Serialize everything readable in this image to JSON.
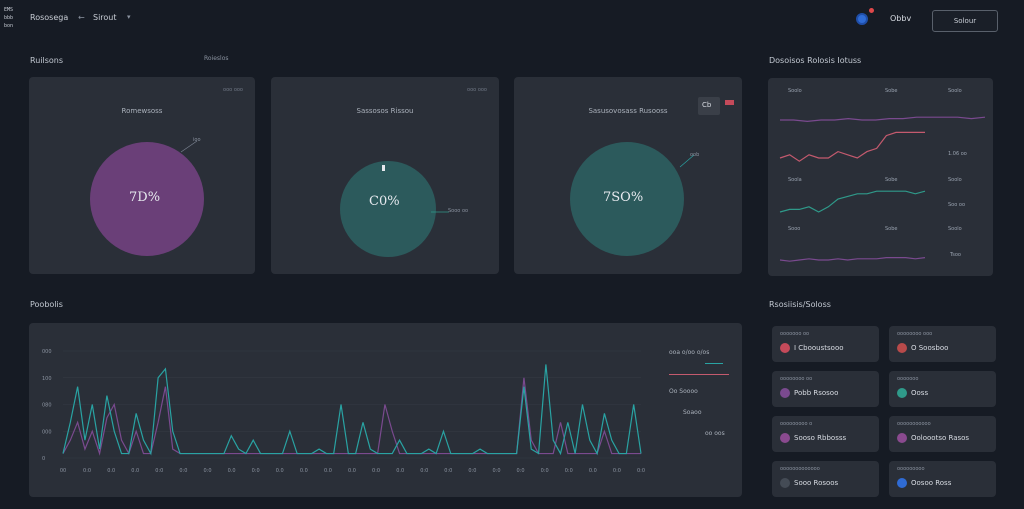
{
  "app": {
    "logo_lines": [
      "EMS",
      "bbb",
      "bon"
    ],
    "breadcrumb": [
      "Rososega",
      "Sirout"
    ],
    "user_label": "Obbv",
    "top_button": "Solour"
  },
  "colors": {
    "bg": "#161b24",
    "card": "#2a2f38",
    "purple": "#6a3f78",
    "teal": "#2c5a5c",
    "pink": "#c45a6e",
    "green": "#2f9a8a",
    "violet": "#7a4a8f",
    "cyan": "#29a3a3"
  },
  "overview": {
    "title": "Ruilsons",
    "tail": "Roieslos",
    "cards": [
      {
        "title": "Romewsoss",
        "corner": "ooo ooo",
        "value": "7D%",
        "leader": "ioo"
      },
      {
        "title": "Sassosos Rissou",
        "corner": "ooo ooo",
        "value": "C0%",
        "leader": "Sooo oo"
      },
      {
        "title": "Sasusovosass Rusooss",
        "corner": "Cb",
        "value": "7SO%",
        "leader": "oob"
      }
    ]
  },
  "trends": {
    "title": "Dosoisos Rolosis Iotuss",
    "columns": [
      "Soolo",
      "Sobe",
      "Soolo"
    ],
    "rows": [
      {
        "color_key": "violet",
        "label": "",
        "value": ""
      },
      {
        "color_key": "pink",
        "label": "Sooo",
        "value": "1.06 oo"
      },
      {
        "color_key": "green",
        "label": "Soola",
        "value": "Soo oo"
      },
      {
        "color_key": "violet",
        "label": "Sooo",
        "value": "Tsoo"
      }
    ],
    "col_row_labels": [
      "Soolo",
      "Sobe",
      "Soolo"
    ]
  },
  "bottom": {
    "title": "Poobolis",
    "y_ticks": [
      "000",
      "100",
      "080",
      "000",
      "0"
    ],
    "x_ticks": [
      "00",
      "0:0",
      "0.0",
      "0.0",
      "0:0",
      "0:0",
      "0:0",
      "0.0",
      "0:0",
      "0.0",
      "0.0",
      "0.0",
      "0.0",
      "0:0",
      "0.0",
      "0:0",
      "0:0",
      "0:0",
      "0:0",
      "0:0",
      "0:0",
      "0:0",
      "0.0",
      "0:0",
      "0:0"
    ],
    "legend": [
      {
        "color_key": "",
        "text": "ooa  o/oo  o/os"
      },
      {
        "color_key": "cyan",
        "text": ""
      },
      {
        "color_key": "pink",
        "text": ""
      },
      {
        "color_key": "",
        "text": "Oo  Soooo"
      },
      {
        "color_key": "",
        "text": "Soaoo"
      },
      {
        "color_key": "",
        "text": "oo  oos"
      }
    ]
  },
  "status": {
    "title": "Rsosiisis/Soloss",
    "tiles": [
      {
        "title": "ooooooo  oo",
        "value": "I Cbooustsooo",
        "icon_color": "#c44a5a"
      },
      {
        "title": "oooooooo  ooo",
        "value": "O Soosboo",
        "icon_color": "#b84a4a"
      },
      {
        "title": "oooooooo  oo",
        "value": "Pobb Rsosoo",
        "icon_color": "#7a4a8f"
      },
      {
        "title": "ooooooo",
        "value": "Ooss",
        "icon_color": "#2f9a8a"
      },
      {
        "title": "ooooooooo  o",
        "value": "Sooso Rbbosss",
        "icon_color": "#8a4a8f"
      },
      {
        "title": "ooooooooooo",
        "value": "Ooloootso Rasos",
        "icon_color": "#8a4a8f"
      },
      {
        "title": "ooooooooooooo",
        "value": "Sooo Rosoos",
        "icon_color": "#444b55"
      },
      {
        "title": "ooooooooo",
        "value": "Oosoo Ross",
        "icon_color": "#2f6bd4"
      }
    ]
  },
  "chart_data": {
    "type": "line",
    "title": "",
    "xlabel": "",
    "ylabel": "",
    "x": [
      0,
      1,
      2,
      3,
      4,
      5,
      6,
      7,
      8,
      9,
      10,
      11,
      12,
      13,
      14,
      15,
      16,
      17,
      18,
      19,
      20,
      21,
      22,
      23,
      24,
      25,
      26,
      27,
      28,
      29,
      30,
      31,
      32,
      33,
      34,
      35,
      36,
      37,
      38,
      39,
      40,
      41,
      42,
      43,
      44,
      45,
      46,
      47,
      48,
      49,
      50,
      51,
      52,
      53,
      54,
      55,
      56,
      57,
      58,
      59,
      60,
      61,
      62,
      63,
      64,
      65,
      66,
      67,
      68,
      69,
      70,
      71,
      72,
      73,
      74,
      75,
      76,
      77,
      78,
      79
    ],
    "ylim": [
      0,
      120
    ],
    "series": [
      {
        "name": "",
        "color_key": "cyan",
        "values": [
          5,
          40,
          80,
          20,
          60,
          10,
          70,
          30,
          5,
          5,
          50,
          20,
          5,
          90,
          100,
          30,
          5,
          5,
          5,
          5,
          5,
          5,
          5,
          25,
          10,
          5,
          20,
          5,
          5,
          5,
          5,
          30,
          5,
          5,
          5,
          10,
          5,
          5,
          60,
          5,
          5,
          40,
          10,
          5,
          5,
          5,
          20,
          5,
          5,
          5,
          10,
          5,
          30,
          5,
          5,
          5,
          5,
          10,
          5,
          5,
          5,
          5,
          5,
          80,
          10,
          5,
          105,
          20,
          5,
          40,
          5,
          60,
          20,
          5,
          50,
          20,
          5,
          5,
          60,
          5
        ]
      },
      {
        "name": "",
        "color_key": "violet",
        "values": [
          5,
          20,
          40,
          10,
          30,
          5,
          45,
          60,
          20,
          5,
          30,
          5,
          5,
          40,
          80,
          10,
          5,
          5,
          5,
          5,
          5,
          5,
          5,
          5,
          5,
          5,
          5,
          5,
          5,
          5,
          5,
          5,
          5,
          5,
          5,
          5,
          5,
          5,
          5,
          5,
          5,
          5,
          5,
          5,
          60,
          30,
          5,
          5,
          5,
          5,
          5,
          5,
          5,
          5,
          5,
          5,
          5,
          5,
          5,
          5,
          5,
          5,
          5,
          90,
          20,
          5,
          5,
          5,
          40,
          5,
          5,
          5,
          5,
          5,
          30,
          5,
          5,
          5,
          5,
          5
        ]
      }
    ],
    "trend_series": [
      {
        "name": "",
        "color_key": "violet",
        "values": [
          80,
          80,
          79,
          80,
          80,
          81,
          80,
          80,
          81,
          81,
          82,
          82,
          82,
          82,
          81,
          82
        ]
      },
      {
        "name": "",
        "color_key": "pink",
        "values": [
          55,
          56,
          54,
          56,
          55,
          55,
          57,
          56,
          55,
          57,
          58,
          62,
          63,
          63,
          63,
          63
        ]
      },
      {
        "name": "",
        "color_key": "green",
        "values": [
          40,
          41,
          41,
          42,
          40,
          42,
          45,
          46,
          47,
          47,
          48,
          48,
          48,
          48,
          47,
          48
        ]
      },
      {
        "name": "",
        "color_key": "violet",
        "values": [
          30,
          29,
          30,
          31,
          30,
          30,
          31,
          30,
          31,
          31,
          31,
          32,
          32,
          32,
          31,
          32
        ]
      }
    ]
  }
}
